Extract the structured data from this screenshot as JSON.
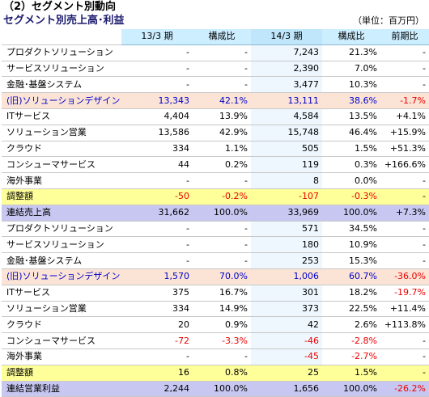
{
  "title": "（2）セグメント別動向",
  "subtitle": "セグメント別売上高･利益",
  "unit": "（単位：百万円）",
  "headers": [
    "",
    "13/3 期",
    "構成比",
    "14/3 期",
    "構成比",
    "前期比"
  ],
  "rows": [
    {
      "label": "プロダクトソリューション",
      "v13": "-",
      "r13": "-",
      "v14": "7,243",
      "r14": "21.3%",
      "yoy": "-",
      "style": ""
    },
    {
      "label": "サービスソリューション",
      "v13": "-",
      "r13": "-",
      "v14": "2,390",
      "r14": "7.0%",
      "yoy": "-",
      "style": ""
    },
    {
      "label": "金融･基盤システム",
      "v13": "-",
      "r13": "-",
      "v14": "3,477",
      "r14": "10.3%",
      "yoy": "-",
      "style": ""
    },
    {
      "label": "(旧)ソリューションデザイン",
      "v13": "13,343",
      "r13": "42.1%",
      "v14": "13,111",
      "r14": "38.6%",
      "yoy": "-1.7%",
      "style": "old",
      "neg": [
        "yoy"
      ]
    },
    {
      "label": "ITサービス",
      "v13": "4,404",
      "r13": "13.9%",
      "v14": "4,584",
      "r14": "13.5%",
      "yoy": "+4.1%",
      "style": ""
    },
    {
      "label": "ソリューション営業",
      "v13": "13,586",
      "r13": "42.9%",
      "v14": "15,748",
      "r14": "46.4%",
      "yoy": "+15.9%",
      "style": ""
    },
    {
      "label": "クラウド",
      "v13": "334",
      "r13": "1.1%",
      "v14": "505",
      "r14": "1.5%",
      "yoy": "+51.3%",
      "style": ""
    },
    {
      "label": "コンシューマサービス",
      "v13": "44",
      "r13": "0.2%",
      "v14": "119",
      "r14": "0.3%",
      "yoy": "+166.6%",
      "style": ""
    },
    {
      "label": "海外事業",
      "v13": "-",
      "r13": "-",
      "v14": "8",
      "r14": "0.0%",
      "yoy": "-",
      "style": ""
    },
    {
      "label": "調整額",
      "v13": "-50",
      "r13": "-0.2%",
      "v14": "-107",
      "r14": "-0.3%",
      "yoy": "-",
      "style": "adj",
      "neg": [
        "v13",
        "r13",
        "v14",
        "r14"
      ]
    },
    {
      "label": "連結売上高",
      "v13": "31,662",
      "r13": "100.0%",
      "v14": "33,969",
      "r14": "100.0%",
      "yoy": "+7.3%",
      "style": "tot"
    },
    {
      "label": "プロダクトソリューション",
      "v13": "-",
      "r13": "-",
      "v14": "571",
      "r14": "34.5%",
      "yoy": "-",
      "style": ""
    },
    {
      "label": "サービスソリューション",
      "v13": "-",
      "r13": "-",
      "v14": "180",
      "r14": "10.9%",
      "yoy": "-",
      "style": ""
    },
    {
      "label": "金融･基盤システム",
      "v13": "-",
      "r13": "-",
      "v14": "253",
      "r14": "15.3%",
      "yoy": "-",
      "style": ""
    },
    {
      "label": "(旧)ソリューションデザイン",
      "v13": "1,570",
      "r13": "70.0%",
      "v14": "1,006",
      "r14": "60.7%",
      "yoy": "-36.0%",
      "style": "old",
      "neg": [
        "yoy"
      ]
    },
    {
      "label": "ITサービス",
      "v13": "375",
      "r13": "16.7%",
      "v14": "301",
      "r14": "18.2%",
      "yoy": "-19.7%",
      "style": "",
      "neg": [
        "yoy"
      ]
    },
    {
      "label": "ソリューション営業",
      "v13": "334",
      "r13": "14.9%",
      "v14": "373",
      "r14": "22.5%",
      "yoy": "+11.4%",
      "style": ""
    },
    {
      "label": "クラウド",
      "v13": "20",
      "r13": "0.9%",
      "v14": "42",
      "r14": "2.6%",
      "yoy": "+113.8%",
      "style": ""
    },
    {
      "label": "コンシューマサービス",
      "v13": "-72",
      "r13": "-3.3%",
      "v14": "-46",
      "r14": "-2.8%",
      "yoy": "-",
      "style": "",
      "neg": [
        "v13",
        "r13",
        "v14",
        "r14"
      ]
    },
    {
      "label": "海外事業",
      "v13": "-",
      "r13": "-",
      "v14": "-45",
      "r14": "-2.7%",
      "yoy": "-",
      "style": "",
      "neg": [
        "v14",
        "r14"
      ]
    },
    {
      "label": "調整額",
      "v13": "16",
      "r13": "0.8%",
      "v14": "25",
      "r14": "1.5%",
      "yoy": "-",
      "style": "adj"
    },
    {
      "label": "連結営業利益",
      "v13": "2,244",
      "r13": "100.0%",
      "v14": "1,656",
      "r14": "100.0%",
      "yoy": "-26.2%",
      "style": "tot",
      "neg": [
        "yoy"
      ]
    }
  ]
}
